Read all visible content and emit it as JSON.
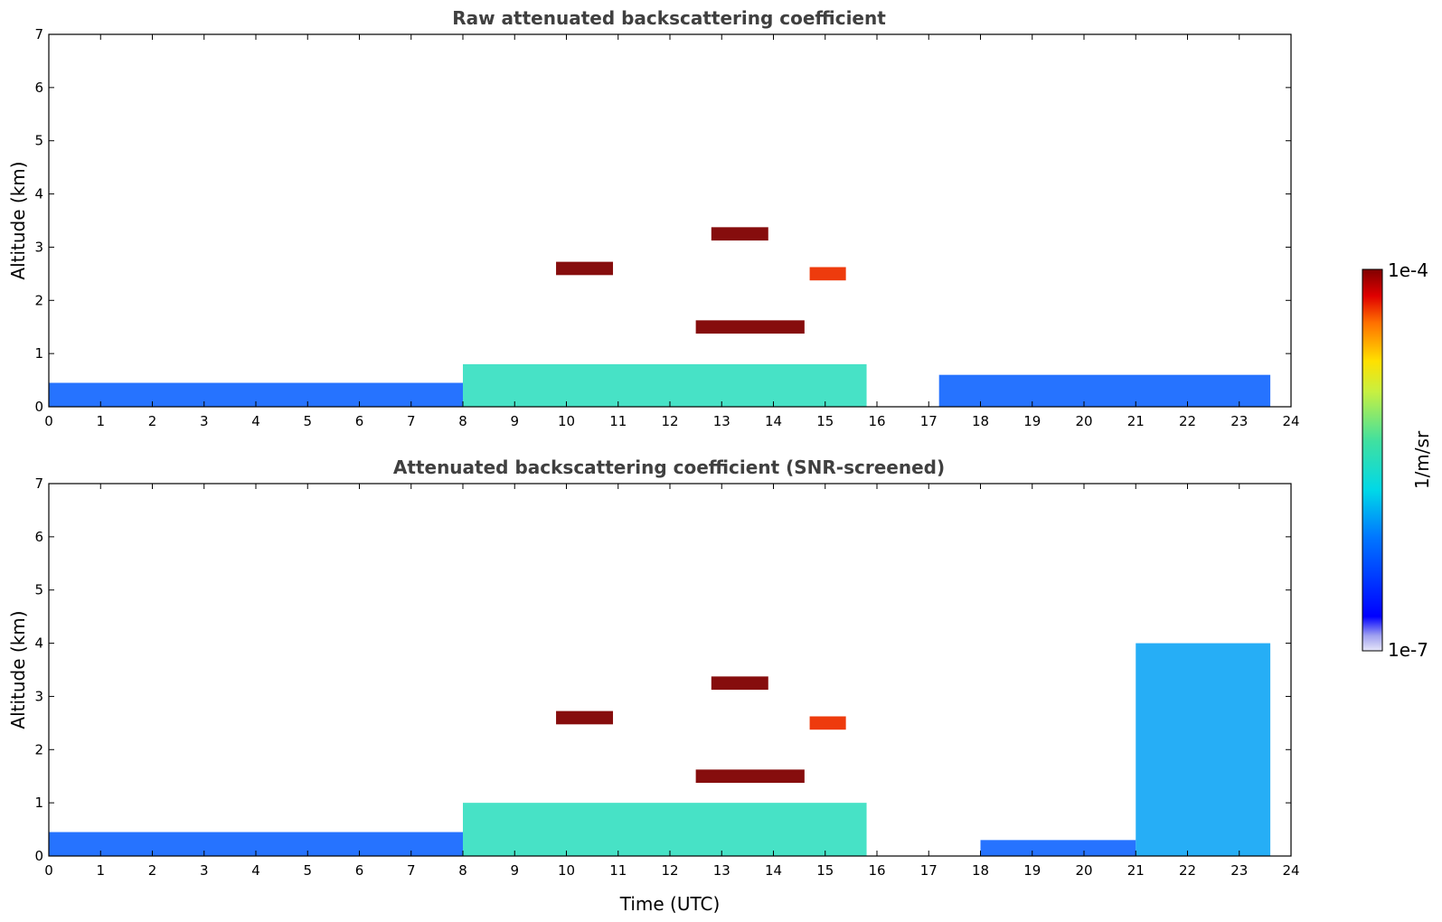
{
  "chart_data": [
    {
      "type": "heatmap",
      "title": "Raw attenuated backscattering coefficient",
      "xlabel": "",
      "ylabel": "Altitude (km)",
      "xlim": [
        0,
        24
      ],
      "ylim": [
        0,
        7
      ],
      "x_ticks": [
        "0",
        "1",
        "2",
        "3",
        "4",
        "5",
        "6",
        "7",
        "8",
        "9",
        "10",
        "11",
        "12",
        "13",
        "14",
        "15",
        "16",
        "17",
        "18",
        "19",
        "20",
        "21",
        "22",
        "23",
        "24"
      ],
      "y_ticks": [
        "0",
        "1",
        "2",
        "3",
        "4",
        "5",
        "6",
        "7"
      ],
      "grid": false,
      "data_end_hour": 23.6,
      "features": [
        {
          "kind": "surface_layer",
          "t_start": 0,
          "t_end": 8,
          "alt_top_km": 0.45,
          "level": 0.25
        },
        {
          "kind": "boundary_layer",
          "t_start": 8,
          "t_end": 15.8,
          "alt_top_km": 0.8,
          "level": 0.5
        },
        {
          "kind": "surface_layer",
          "t_start": 17.2,
          "t_end": 23.6,
          "alt_top_km": 0.6,
          "level": 0.25
        },
        {
          "kind": "cloud",
          "t_start": 9.8,
          "t_end": 10.9,
          "alt_km": 2.6,
          "level": 1.0
        },
        {
          "kind": "cloud",
          "t_start": 12.8,
          "t_end": 13.9,
          "alt_km": 3.25,
          "level": 1.0
        },
        {
          "kind": "cloud",
          "t_start": 12.5,
          "t_end": 14.6,
          "alt_km": 1.5,
          "level": 1.0
        },
        {
          "kind": "precipitation",
          "t_start": 14.7,
          "t_end": 15.4,
          "alt_km": 2.5,
          "level": 0.9
        }
      ]
    },
    {
      "type": "heatmap",
      "title": "Attenuated backscattering coefficient (SNR-screened)",
      "xlabel": "Time (UTC)",
      "ylabel": "Altitude (km)",
      "xlim": [
        0,
        24
      ],
      "ylim": [
        0,
        7
      ],
      "x_ticks": [
        "0",
        "1",
        "2",
        "3",
        "4",
        "5",
        "6",
        "7",
        "8",
        "9",
        "10",
        "11",
        "12",
        "13",
        "14",
        "15",
        "16",
        "17",
        "18",
        "19",
        "20",
        "21",
        "22",
        "23",
        "24"
      ],
      "y_ticks": [
        "0",
        "1",
        "2",
        "3",
        "4",
        "5",
        "6",
        "7"
      ],
      "grid": false,
      "data_end_hour": 23.6,
      "features": [
        {
          "kind": "surface_layer",
          "t_start": 0,
          "t_end": 8,
          "alt_top_km": 0.45,
          "level": 0.25
        },
        {
          "kind": "boundary_layer",
          "t_start": 8,
          "t_end": 15.8,
          "alt_top_km": 1.0,
          "level": 0.5
        },
        {
          "kind": "surface_layer",
          "t_start": 18,
          "t_end": 21,
          "alt_top_km": 0.3,
          "level": 0.25
        },
        {
          "kind": "aerosol_layer",
          "t_start": 21,
          "t_end": 23.6,
          "alt_top_km": 4.0,
          "level": 0.35
        },
        {
          "kind": "cloud",
          "t_start": 9.8,
          "t_end": 10.9,
          "alt_km": 2.6,
          "level": 1.0
        },
        {
          "kind": "cloud",
          "t_start": 12.8,
          "t_end": 13.9,
          "alt_km": 3.25,
          "level": 1.0
        },
        {
          "kind": "cloud",
          "t_start": 12.5,
          "t_end": 14.6,
          "alt_km": 1.5,
          "level": 1.0
        },
        {
          "kind": "precipitation",
          "t_start": 14.7,
          "t_end": 15.4,
          "alt_km": 2.5,
          "level": 0.9
        }
      ]
    }
  ],
  "colorbar": {
    "max_label": "1e-4",
    "min_label": "1e-7",
    "units_label": "1/m/sr",
    "colormap": "jet",
    "scale": "log"
  }
}
